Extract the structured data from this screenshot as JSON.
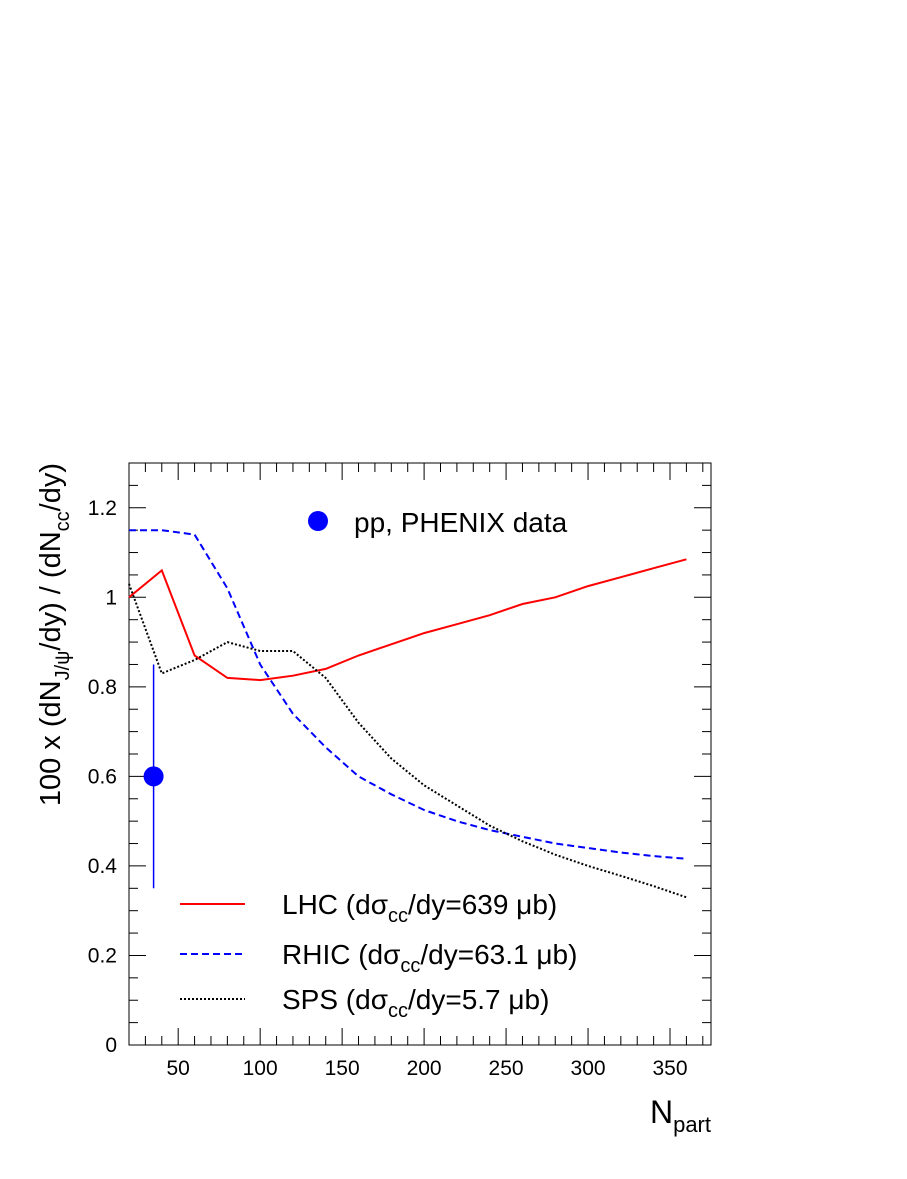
{
  "chart_data": {
    "type": "line",
    "xlabel": {
      "main": "N",
      "sub": "part"
    },
    "ylabel": {
      "prefix": "100 x (dN",
      "sub1": "J/ψ",
      "mid": "/dy) / (dN",
      "sub2": "cc",
      "suffix": "/dy)"
    },
    "xlim": [
      20,
      375
    ],
    "ylim": [
      0,
      1.3
    ],
    "xticks": [
      50,
      100,
      150,
      200,
      250,
      300,
      350
    ],
    "yticks": [
      0,
      0.2,
      0.4,
      0.6,
      0.8,
      1,
      1.2
    ],
    "xtick_labels": [
      "50",
      "100",
      "150",
      "200",
      "250",
      "300",
      "350"
    ],
    "ytick_labels": [
      "0",
      "0.2",
      "0.4",
      "0.6",
      "0.8",
      "1",
      "1.2"
    ],
    "series": [
      {
        "name": {
          "prefix": "LHC (dσ",
          "sub": "cc",
          "suffix": "/dy=639 μb)"
        },
        "color": "#ff0000",
        "style": "solid",
        "x": [
          20,
          40,
          60,
          80,
          100,
          120,
          140,
          160,
          180,
          200,
          220,
          240,
          260,
          280,
          300,
          320,
          340,
          360
        ],
        "y": [
          1.0,
          1.06,
          0.87,
          0.82,
          0.815,
          0.825,
          0.84,
          0.87,
          0.895,
          0.92,
          0.94,
          0.96,
          0.985,
          1.0,
          1.025,
          1.045,
          1.065,
          1.085
        ]
      },
      {
        "name": {
          "prefix": "RHIC (dσ",
          "sub": "cc",
          "suffix": "/dy=63.1 μb)"
        },
        "color": "#0000ff",
        "style": "dashed",
        "x": [
          20,
          40,
          60,
          80,
          100,
          120,
          140,
          160,
          180,
          200,
          220,
          240,
          260,
          280,
          300,
          320,
          340,
          360
        ],
        "y": [
          1.15,
          1.15,
          1.14,
          1.02,
          0.85,
          0.74,
          0.665,
          0.6,
          0.56,
          0.525,
          0.5,
          0.48,
          0.465,
          0.45,
          0.44,
          0.43,
          0.422,
          0.416
        ]
      },
      {
        "name": {
          "prefix": "SPS (dσ",
          "sub": "cc",
          "suffix": "/dy=5.7 μb)"
        },
        "color": "#000000",
        "style": "dotted",
        "x": [
          20,
          40,
          60,
          80,
          100,
          120,
          140,
          160,
          180,
          200,
          220,
          240,
          260,
          280,
          300,
          320,
          340,
          360
        ],
        "y": [
          1.03,
          0.83,
          0.86,
          0.9,
          0.88,
          0.88,
          0.82,
          0.72,
          0.64,
          0.58,
          0.535,
          0.49,
          0.455,
          0.425,
          0.4,
          0.378,
          0.355,
          0.33
        ]
      }
    ],
    "points": [
      {
        "name": "pp, PHENIX data",
        "x": 35,
        "y": 0.6,
        "yerr_low": 0.35,
        "yerr_high": 0.85,
        "color": "#0000ff"
      }
    ],
    "legend_placement": "bottom-center",
    "points_legend_placement": "top-center",
    "grid": false
  }
}
